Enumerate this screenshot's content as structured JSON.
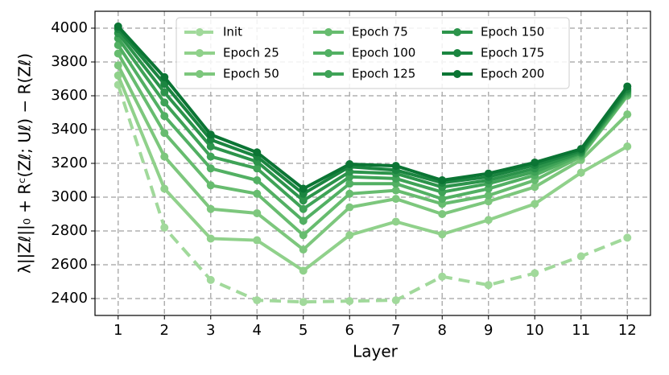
{
  "chart_data": {
    "type": "line",
    "xlabel": "Layer",
    "ylabel": "λ||Zℓ||₀ + Rᶜ(Zℓ; Uℓ) − R(Zℓ)",
    "x": [
      1,
      2,
      3,
      4,
      5,
      6,
      7,
      8,
      9,
      10,
      11,
      12
    ],
    "xlim": [
      0.5,
      12.5
    ],
    "xticks": [
      1,
      2,
      3,
      4,
      5,
      6,
      7,
      8,
      9,
      10,
      11,
      12
    ],
    "ylim": [
      2300,
      4100
    ],
    "yticks": [
      2400,
      2600,
      2800,
      3000,
      3200,
      3400,
      3600,
      3800,
      4000
    ],
    "grid": true,
    "legend": "upper center",
    "legend_columns": 3,
    "series": [
      {
        "name": "Init",
        "color": "#a1d99b",
        "linestyle": "dashed",
        "values": [
          3665,
          2820,
          2510,
          2390,
          2380,
          2385,
          2390,
          2530,
          2480,
          2550,
          2650,
          2760
        ]
      },
      {
        "name": "Epoch 25",
        "color": "#90d18b",
        "linestyle": "solid",
        "values": [
          3720,
          3050,
          2755,
          2745,
          2565,
          2775,
          2855,
          2780,
          2865,
          2960,
          3145,
          3300
        ]
      },
      {
        "name": "Epoch 50",
        "color": "#7dc77d",
        "linestyle": "solid",
        "values": [
          3780,
          3240,
          2930,
          2905,
          2690,
          2940,
          2990,
          2900,
          2975,
          3060,
          3220,
          3490
        ]
      },
      {
        "name": "Epoch 75",
        "color": "#67bc6f",
        "linestyle": "solid",
        "values": [
          3850,
          3380,
          3070,
          3020,
          2775,
          3020,
          3040,
          2960,
          3010,
          3100,
          3240,
          3600
        ]
      },
      {
        "name": "Epoch 100",
        "color": "#52b063",
        "linestyle": "solid",
        "values": [
          3900,
          3480,
          3170,
          3100,
          2860,
          3080,
          3080,
          2990,
          3050,
          3130,
          3250,
          3610
        ]
      },
      {
        "name": "Epoch 125",
        "color": "#3fa357",
        "linestyle": "solid",
        "values": [
          3940,
          3560,
          3240,
          3170,
          2930,
          3120,
          3110,
          3030,
          3080,
          3150,
          3260,
          3620
        ]
      },
      {
        "name": "Epoch 150",
        "color": "#2c944b",
        "linestyle": "solid",
        "values": [
          3970,
          3620,
          3300,
          3210,
          2980,
          3150,
          3140,
          3060,
          3100,
          3170,
          3265,
          3630
        ]
      },
      {
        "name": "Epoch 175",
        "color": "#1b8540",
        "linestyle": "solid",
        "values": [
          3995,
          3670,
          3340,
          3240,
          3020,
          3180,
          3160,
          3085,
          3120,
          3190,
          3275,
          3640
        ]
      },
      {
        "name": "Epoch 200",
        "color": "#0b7534",
        "linestyle": "solid",
        "values": [
          4010,
          3710,
          3370,
          3265,
          3050,
          3195,
          3185,
          3100,
          3140,
          3205,
          3285,
          3655
        ]
      }
    ]
  }
}
